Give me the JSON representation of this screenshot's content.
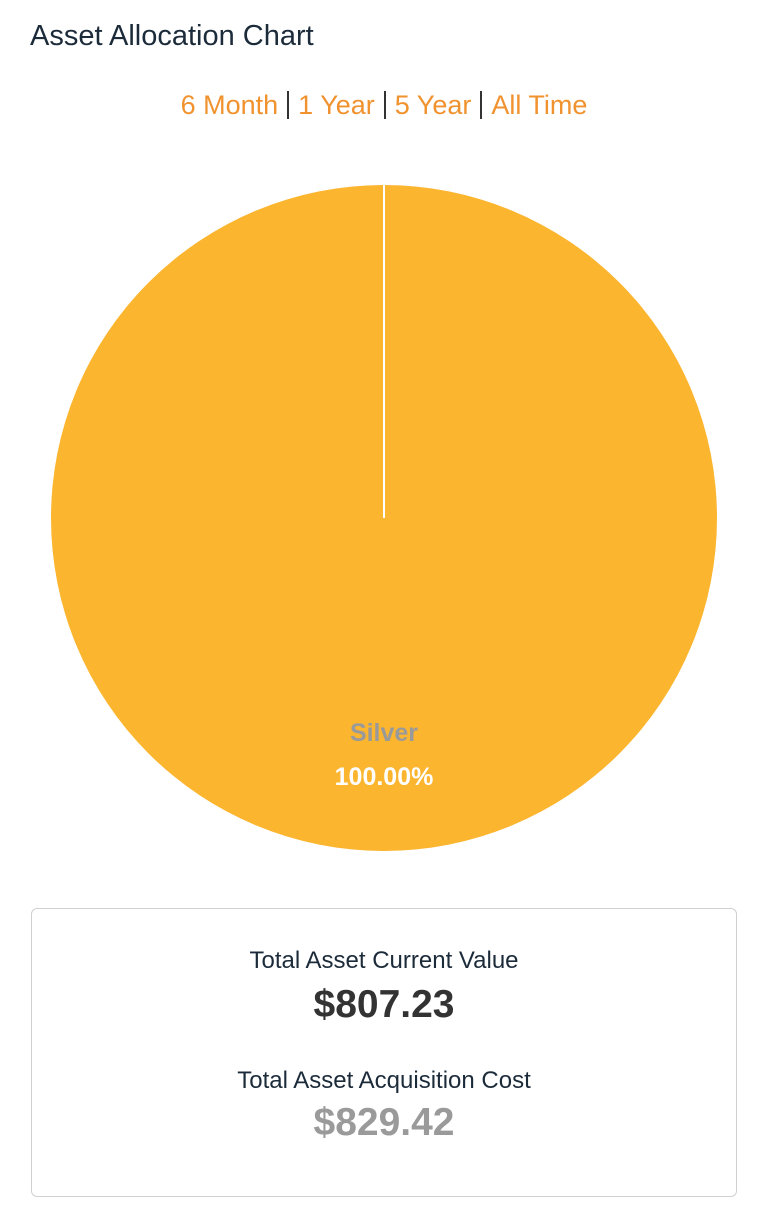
{
  "header": {
    "title": "Asset Allocation Chart"
  },
  "periods": [
    "6 Month",
    "1 Year",
    "5 Year",
    "All Time"
  ],
  "chart_data": {
    "type": "pie",
    "categories": [
      "Silver"
    ],
    "values": [
      100
    ],
    "value_labels": [
      "100.00%"
    ],
    "colors": [
      "#fbb52f"
    ]
  },
  "summary": {
    "current_value_label": "Total Asset Current Value",
    "current_value": "$807.23",
    "acquisition_cost_label": "Total Asset Acquisition Cost",
    "acquisition_cost": "$829.42"
  }
}
